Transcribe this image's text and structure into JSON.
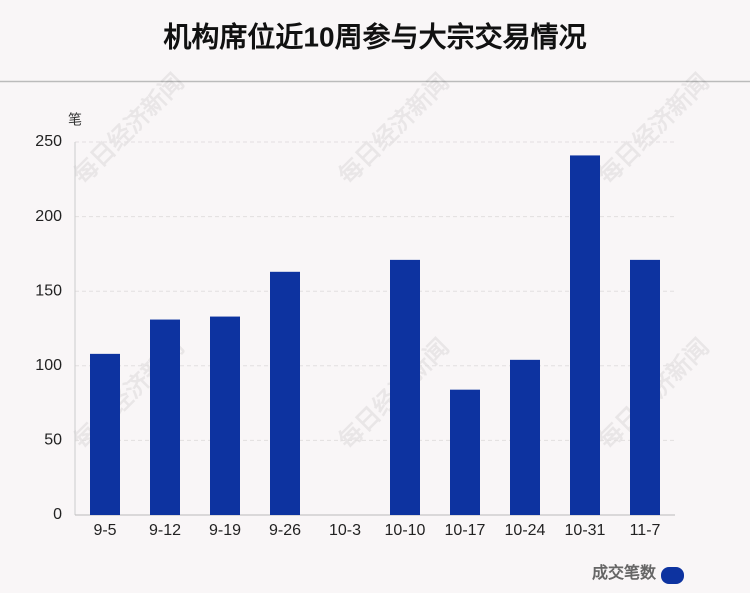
{
  "chart_data": {
    "type": "bar",
    "title": "机构席位近10周参与大宗交易情况",
    "y_label": "笔",
    "watermark": "每日经济新闻",
    "categories": [
      "9-5",
      "9-12",
      "9-19",
      "9-26",
      "10-3",
      "10-10",
      "10-17",
      "10-24",
      "10-31",
      "11-7"
    ],
    "series": [
      {
        "name": "成交笔数",
        "color": "#0d33a0",
        "values": [
          108,
          131,
          133,
          163,
          0,
          171,
          84,
          104,
          241,
          171
        ]
      }
    ],
    "ylim": [
      0,
      250
    ],
    "yticks": [
      0,
      50,
      100,
      150,
      200,
      250
    ],
    "grid": true,
    "legend": "bottom-right"
  }
}
